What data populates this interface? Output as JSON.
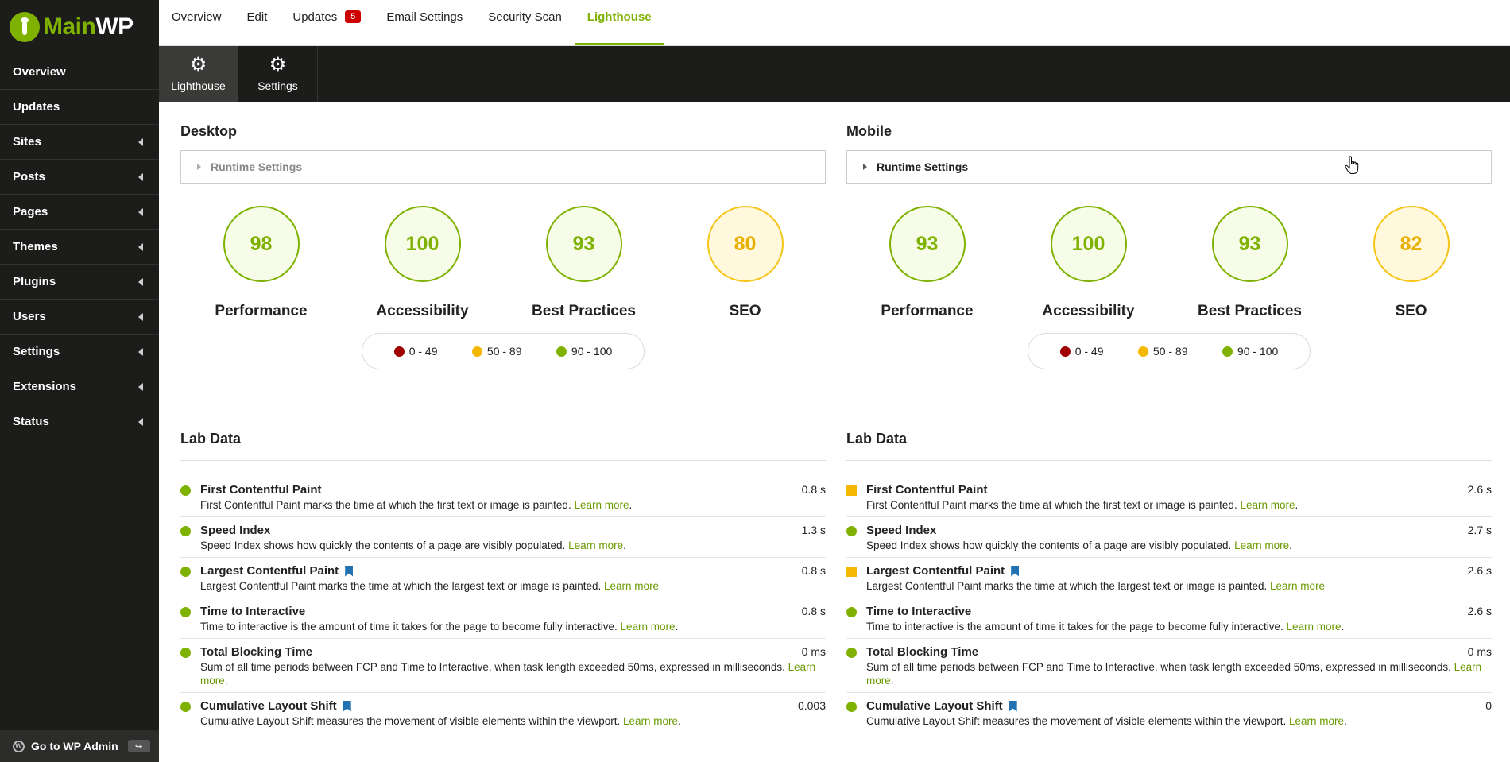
{
  "brand": {
    "main": "Main",
    "wp": "WP"
  },
  "sidebar": {
    "items": [
      {
        "label": "Overview",
        "sub": false
      },
      {
        "label": "Updates",
        "sub": false
      },
      {
        "label": "Sites",
        "sub": true
      },
      {
        "label": "Posts",
        "sub": true
      },
      {
        "label": "Pages",
        "sub": true
      },
      {
        "label": "Themes",
        "sub": true
      },
      {
        "label": "Plugins",
        "sub": true
      },
      {
        "label": "Users",
        "sub": true
      },
      {
        "label": "Settings",
        "sub": true
      },
      {
        "label": "Extensions",
        "sub": true
      },
      {
        "label": "Status",
        "sub": true
      }
    ],
    "wp_admin": "Go to WP Admin"
  },
  "tabs": {
    "overview": "Overview",
    "edit": "Edit",
    "updates": "Updates",
    "updates_count": "5",
    "email": "Email Settings",
    "security": "Security Scan",
    "lighthouse": "Lighthouse"
  },
  "subnav": {
    "lighthouse": "Lighthouse",
    "settings": "Settings"
  },
  "desktop": {
    "title": "Desktop",
    "runtime": "Runtime Settings",
    "scores": [
      {
        "value": "98",
        "label": "Performance",
        "level": "green"
      },
      {
        "value": "100",
        "label": "Accessibility",
        "level": "green"
      },
      {
        "value": "93",
        "label": "Best Practices",
        "level": "green"
      },
      {
        "value": "80",
        "label": "SEO",
        "level": "orange"
      }
    ],
    "legend": [
      "0 - 49",
      "50 - 89",
      "90 - 100"
    ],
    "lab_title": "Lab Data",
    "metrics": [
      {
        "name": "First Contentful Paint",
        "desc": "First Contentful Paint marks the time at which the first text or image is painted.",
        "link": "Learn more",
        "after": ".",
        "value": "0.8 s",
        "status": "green",
        "bookmark": false
      },
      {
        "name": "Speed Index",
        "desc": "Speed Index shows how quickly the contents of a page are visibly populated.",
        "link": "Learn more",
        "after": ".",
        "value": "1.3 s",
        "status": "green",
        "bookmark": false
      },
      {
        "name": "Largest Contentful Paint",
        "desc": "Largest Contentful Paint marks the time at which the largest text or image is painted.",
        "link": "Learn more",
        "after": "",
        "value": "0.8 s",
        "status": "green",
        "bookmark": true
      },
      {
        "name": "Time to Interactive",
        "desc": "Time to interactive is the amount of time it takes for the page to become fully interactive.",
        "link": "Learn more",
        "after": ".",
        "value": "0.8 s",
        "status": "green",
        "bookmark": false
      },
      {
        "name": "Total Blocking Time",
        "desc": "Sum of all time periods between FCP and Time to Interactive, when task length exceeded 50ms, expressed in milliseconds.",
        "link": "Learn more",
        "after": ".",
        "value": "0 ms",
        "status": "green",
        "bookmark": false
      },
      {
        "name": "Cumulative Layout Shift",
        "desc": "Cumulative Layout Shift measures the movement of visible elements within the viewport.",
        "link": "Learn more",
        "after": ".",
        "value": "0.003",
        "status": "green",
        "bookmark": true
      }
    ]
  },
  "mobile": {
    "title": "Mobile",
    "runtime": "Runtime Settings",
    "scores": [
      {
        "value": "93",
        "label": "Performance",
        "level": "green"
      },
      {
        "value": "100",
        "label": "Accessibility",
        "level": "green"
      },
      {
        "value": "93",
        "label": "Best Practices",
        "level": "green"
      },
      {
        "value": "82",
        "label": "SEO",
        "level": "orange"
      }
    ],
    "legend": [
      "0 - 49",
      "50 - 89",
      "90 - 100"
    ],
    "lab_title": "Lab Data",
    "metrics": [
      {
        "name": "First Contentful Paint",
        "desc": "First Contentful Paint marks the time at which the first text or image is painted.",
        "link": "Learn more",
        "after": ".",
        "value": "2.6 s",
        "status": "orange",
        "bookmark": false
      },
      {
        "name": "Speed Index",
        "desc": "Speed Index shows how quickly the contents of a page are visibly populated.",
        "link": "Learn more",
        "after": ".",
        "value": "2.7 s",
        "status": "green",
        "bookmark": false
      },
      {
        "name": "Largest Contentful Paint",
        "desc": "Largest Contentful Paint marks the time at which the largest text or image is painted.",
        "link": "Learn more",
        "after": "",
        "value": "2.6 s",
        "status": "orange",
        "bookmark": true
      },
      {
        "name": "Time to Interactive",
        "desc": "Time to interactive is the amount of time it takes for the page to become fully interactive.",
        "link": "Learn more",
        "after": ".",
        "value": "2.6 s",
        "status": "green",
        "bookmark": false
      },
      {
        "name": "Total Blocking Time",
        "desc": "Sum of all time periods between FCP and Time to Interactive, when task length exceeded 50ms, expressed in milliseconds.",
        "link": "Learn more",
        "after": ".",
        "value": "0 ms",
        "status": "green",
        "bookmark": false
      },
      {
        "name": "Cumulative Layout Shift",
        "desc": "Cumulative Layout Shift measures the movement of visible elements within the viewport.",
        "link": "Learn more",
        "after": ".",
        "value": "0",
        "status": "green",
        "bookmark": true
      }
    ]
  },
  "colors": {
    "green": "#7fb100",
    "orange": "#f5b800",
    "red": "#a00000",
    "link": "#6a9a00",
    "bookmark": "#2271b1"
  }
}
